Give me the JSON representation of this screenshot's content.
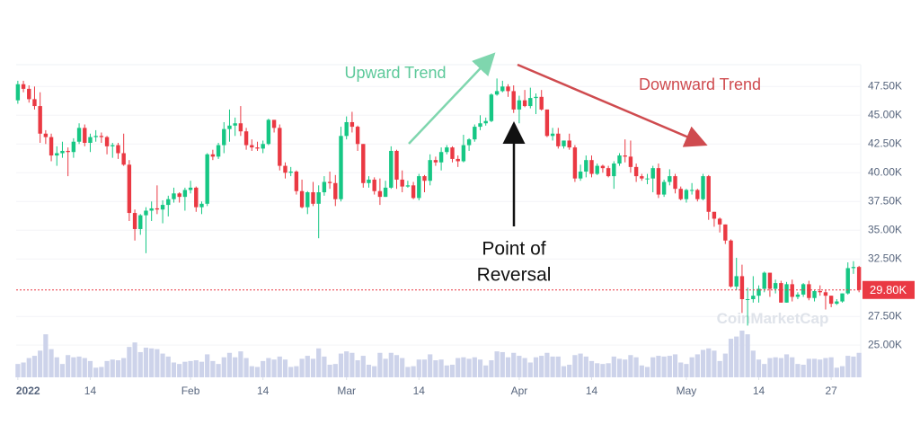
{
  "chart_data": {
    "type": "candlestick",
    "x": [
      1,
      2,
      3,
      4,
      5,
      6,
      7,
      8,
      9,
      10,
      11,
      12,
      13,
      14,
      15,
      16,
      17,
      18,
      19,
      20,
      21,
      22,
      23,
      24,
      25,
      26,
      27,
      28,
      29,
      30,
      31,
      32,
      33,
      34,
      35,
      36,
      37,
      38,
      39,
      40,
      41,
      42,
      43,
      44,
      45,
      46,
      47,
      48,
      49,
      50,
      51,
      52,
      53,
      54,
      55,
      56,
      57,
      58,
      59,
      60,
      61,
      62,
      63,
      64,
      65,
      66,
      67,
      68,
      69,
      70,
      71,
      72,
      73,
      74,
      75,
      76,
      77,
      78,
      79,
      80,
      81,
      82,
      83,
      84,
      85,
      86,
      87,
      88,
      89,
      90,
      91,
      92,
      93,
      94,
      95,
      96,
      97,
      98,
      99,
      100,
      101,
      102,
      103,
      104,
      105,
      106,
      107,
      108,
      109,
      110,
      111,
      112,
      113,
      114,
      115,
      116,
      117,
      118,
      119,
      120,
      121,
      122,
      123,
      124,
      125,
      126,
      127,
      128,
      129,
      130,
      131,
      132,
      133,
      134,
      135,
      136,
      137,
      138,
      139,
      140,
      141,
      142,
      143,
      144,
      145,
      146,
      147,
      148,
      149,
      150,
      151,
      152
    ],
    "open": [
      46300,
      47700,
      47300,
      46400,
      45800,
      43400,
      43100,
      41500,
      41700,
      41900,
      41800,
      42700,
      43900,
      42600,
      43100,
      43200,
      43100,
      42300,
      42400,
      41700,
      40700,
      36500,
      35100,
      36300,
      36700,
      36900,
      36800,
      37200,
      37700,
      38200,
      37900,
      38500,
      38700,
      37000,
      37300,
      41600,
      41400,
      42400,
      43800,
      44100,
      44300,
      43600,
      42400,
      42200,
      42100,
      42500,
      44600,
      43900,
      40600,
      40000,
      40100,
      38400,
      37000,
      38300,
      37300,
      38300,
      39200,
      39100,
      37700,
      43200,
      44400,
      44000,
      42500,
      39100,
      39400,
      38400,
      37900,
      38700,
      41900,
      39400,
      38800,
      38900,
      37800,
      39700,
      39300,
      41100,
      40900,
      41800,
      42200,
      41200,
      41000,
      42400,
      42900,
      44000,
      44300,
      44500,
      46800,
      47100,
      47500,
      47100,
      45500,
      46300,
      45800,
      46500,
      46600,
      45500,
      43200,
      43400,
      42300,
      42800,
      42200,
      39500,
      40100,
      41100,
      39900,
      40600,
      40400,
      39700,
      40800,
      41500,
      41400,
      40500,
      39700,
      39500,
      39500,
      40400,
      38100,
      39200,
      39700,
      38600,
      37700,
      38500,
      38500,
      37700,
      39700,
      36600,
      36000,
      35500,
      34100,
      30100,
      31000,
      29000,
      29000,
      29300,
      29900,
      31300,
      29900,
      30400,
      28700,
      30300,
      29200,
      29400,
      30300,
      29100,
      29700,
      29600,
      29300,
      28600,
      28800,
      29500,
      31700,
      31800
    ],
    "high": [
      48000,
      48000,
      47600,
      47500,
      47000,
      43700,
      43400,
      42300,
      42700,
      42200,
      43000,
      44300,
      44200,
      43400,
      43700,
      43500,
      43200,
      42600,
      42600,
      43400,
      41100,
      36800,
      36400,
      37000,
      37500,
      38900,
      37600,
      38000,
      38700,
      38300,
      38700,
      39300,
      38800,
      37500,
      41700,
      42000,
      42600,
      44400,
      45500,
      44800,
      45800,
      43900,
      42900,
      42700,
      42800,
      44700,
      44600,
      44200,
      40900,
      40500,
      40200,
      39400,
      38400,
      39200,
      38900,
      39700,
      40100,
      39800,
      44000,
      44900,
      45300,
      44100,
      42500,
      39700,
      39600,
      39500,
      39300,
      42300,
      42000,
      40200,
      39300,
      39200,
      39900,
      39800,
      41600,
      41400,
      42200,
      42400,
      42300,
      41500,
      43300,
      43000,
      44200,
      45000,
      44800,
      46900,
      48200,
      48000,
      47700,
      47600,
      46700,
      47200,
      47400,
      46900,
      47200,
      45500,
      43900,
      43900,
      42800,
      43400,
      42400,
      40700,
      41500,
      41500,
      40800,
      40700,
      40600,
      41000,
      41700,
      42900,
      42800,
      40800,
      39900,
      39900,
      40600,
      40800,
      39400,
      40300,
      39900,
      38800,
      38600,
      39100,
      38600,
      39900,
      39800,
      36600,
      36100,
      35500,
      34200,
      32600,
      32000,
      30000,
      31000,
      30200,
      31400,
      31300,
      30700,
      30600,
      30500,
      30700,
      29600,
      30400,
      30600,
      29800,
      30200,
      29800,
      29300,
      29000,
      29500,
      32200,
      32300,
      31900
    ],
    "low": [
      46000,
      47000,
      46100,
      45500,
      42600,
      42500,
      41000,
      40600,
      41300,
      39700,
      41300,
      42500,
      42300,
      41800,
      42700,
      42600,
      41600,
      41300,
      41200,
      40600,
      35800,
      34100,
      34600,
      33000,
      35800,
      36400,
      35600,
      36200,
      37400,
      37400,
      36700,
      38200,
      36600,
      36400,
      37100,
      41100,
      41200,
      41700,
      42700,
      43200,
      43200,
      42000,
      41900,
      41900,
      41700,
      42400,
      43500,
      40200,
      39500,
      39700,
      38100,
      36900,
      36400,
      37100,
      34300,
      38000,
      38600,
      37100,
      37500,
      42900,
      43500,
      41900,
      38700,
      38700,
      38100,
      37200,
      37900,
      38600,
      38600,
      38300,
      38700,
      37700,
      37600,
      38300,
      38900,
      40600,
      40200,
      41600,
      40900,
      40500,
      40900,
      41900,
      42700,
      43700,
      44100,
      44400,
      46700,
      47000,
      46600,
      45200,
      44300,
      45700,
      45600,
      45100,
      45400,
      43100,
      42800,
      42100,
      42100,
      42000,
      39200,
      39300,
      39600,
      39600,
      39800,
      40000,
      39600,
      38600,
      40600,
      40900,
      40000,
      39200,
      39300,
      39000,
      38300,
      37800,
      37900,
      38900,
      38200,
      37600,
      37400,
      38100,
      37500,
      37600,
      35900,
      35300,
      34800,
      33800,
      30000,
      29800,
      27800,
      26700,
      28700,
      28700,
      29600,
      29200,
      29500,
      28700,
      28700,
      28800,
      29000,
      29200,
      28900,
      28800,
      29300,
      28100,
      28300,
      28500,
      28700,
      29400,
      31200,
      29600
    ],
    "close": [
      47700,
      47300,
      46400,
      45800,
      43400,
      43100,
      41500,
      41700,
      41900,
      41800,
      42700,
      43900,
      42600,
      43100,
      43200,
      43100,
      42300,
      42400,
      41700,
      40700,
      36500,
      35100,
      36300,
      36700,
      36900,
      36800,
      37200,
      37700,
      38200,
      37900,
      38500,
      38700,
      37000,
      37300,
      41600,
      41400,
      42400,
      43800,
      44100,
      44300,
      43600,
      42400,
      42200,
      42100,
      42500,
      44600,
      43900,
      40600,
      40000,
      40100,
      38400,
      37000,
      38300,
      37300,
      38300,
      39200,
      39100,
      37700,
      43200,
      44400,
      44000,
      42500,
      39100,
      39400,
      38400,
      37900,
      38700,
      41900,
      39400,
      38800,
      38900,
      37800,
      39700,
      39300,
      41100,
      40900,
      41800,
      42200,
      41200,
      41000,
      42400,
      42900,
      44000,
      44300,
      44500,
      46800,
      47100,
      47500,
      47100,
      45500,
      46300,
      45800,
      46500,
      46600,
      45500,
      43200,
      43400,
      42300,
      42800,
      42200,
      39500,
      40100,
      41100,
      39900,
      40600,
      40400,
      39700,
      40800,
      41500,
      41400,
      40500,
      39700,
      39500,
      39500,
      40400,
      38100,
      39200,
      39700,
      38600,
      37700,
      38500,
      38500,
      37700,
      39700,
      36600,
      36000,
      35500,
      34100,
      30100,
      31000,
      29000,
      29000,
      29300,
      29900,
      31300,
      29900,
      30400,
      28700,
      30300,
      29200,
      29400,
      30300,
      29100,
      29700,
      29600,
      29300,
      28600,
      28800,
      29500,
      31700,
      31800,
      29800
    ],
    "volume": [
      18,
      20,
      26,
      29,
      36,
      58,
      38,
      27,
      18,
      30,
      27,
      28,
      26,
      22,
      13,
      14,
      22,
      24,
      23,
      26,
      41,
      47,
      34,
      40,
      39,
      38,
      32,
      28,
      20,
      18,
      21,
      22,
      23,
      21,
      31,
      22,
      18,
      27,
      33,
      27,
      35,
      26,
      15,
      14,
      22,
      26,
      24,
      28,
      24,
      14,
      15,
      25,
      29,
      25,
      39,
      28,
      17,
      18,
      32,
      35,
      33,
      23,
      29,
      17,
      15,
      33,
      25,
      33,
      30,
      26,
      14,
      15,
      24,
      24,
      31,
      23,
      24,
      16,
      17,
      26,
      27,
      25,
      27,
      24,
      16,
      23,
      35,
      34,
      27,
      33,
      29,
      26,
      20,
      27,
      29,
      33,
      28,
      28,
      15,
      17,
      30,
      32,
      28,
      22,
      19,
      18,
      19,
      28,
      25,
      24,
      30,
      27,
      16,
      14,
      27,
      29,
      28,
      29,
      31,
      20,
      18,
      27,
      31,
      37,
      39,
      36,
      22,
      32,
      52,
      55,
      63,
      58,
      36,
      24,
      18,
      26,
      27,
      26,
      31,
      27,
      18,
      17,
      25,
      25,
      24,
      26,
      27,
      13,
      15,
      29,
      28,
      33
    ],
    "up_color": "#16c784",
    "down_color": "#ea3943",
    "volume_color": "#cdd3ea",
    "xlim": [
      0.7,
      152.3
    ],
    "xticks": [
      {
        "value": 1,
        "label": "2022"
      },
      {
        "value": 14,
        "label": "14"
      },
      {
        "value": 32,
        "label": "Feb"
      },
      {
        "value": 45,
        "label": "14"
      },
      {
        "value": 60,
        "label": "Mar"
      },
      {
        "value": 73,
        "label": "14"
      },
      {
        "value": 91,
        "label": "Apr"
      },
      {
        "value": 104,
        "label": "14"
      },
      {
        "value": 121,
        "label": "May"
      },
      {
        "value": 134,
        "label": "14"
      },
      {
        "value": 147,
        "label": "27"
      }
    ],
    "ylim": [
      22200,
      49400
    ],
    "yticks": [
      {
        "value": 25000,
        "label": "25.00K"
      },
      {
        "value": 27500,
        "label": "27.50K"
      },
      {
        "value": 32500,
        "label": "32.50K"
      },
      {
        "value": 35000,
        "label": "35.00K"
      },
      {
        "value": 37500,
        "label": "37.50K"
      },
      {
        "value": 40000,
        "label": "40.00K"
      },
      {
        "value": 42500,
        "label": "42.50K"
      },
      {
        "value": 45000,
        "label": "45.00K"
      },
      {
        "value": 47500,
        "label": "47.50K"
      }
    ],
    "grid": true,
    "last_price": {
      "value": 29800,
      "label": "29.80K"
    },
    "watermark": "CoinMarketCap",
    "annotations": [
      {
        "text": "Upward Trend",
        "color": "#5cc99a"
      },
      {
        "text": "Downward Trend",
        "color": "#cf4b4f"
      },
      {
        "lines": [
          "Point of",
          "Reversal"
        ],
        "color": "#111111"
      }
    ]
  }
}
